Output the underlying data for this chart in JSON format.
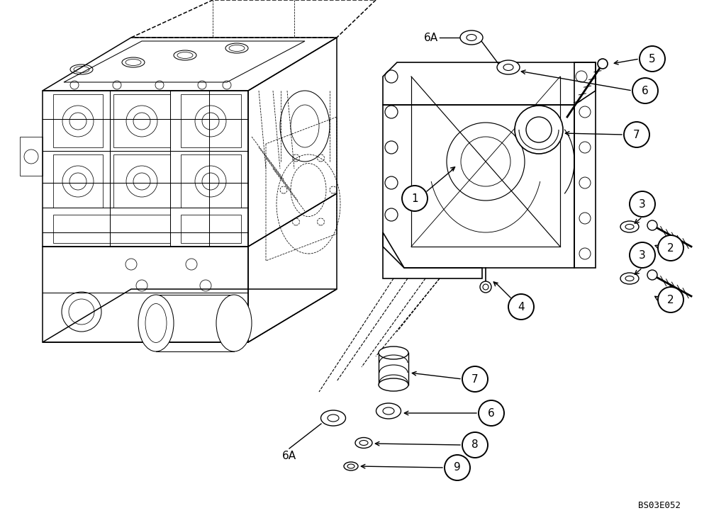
{
  "background_color": "#ffffff",
  "image_code": "BS03E052",
  "fig_width": 10.0,
  "fig_height": 7.48,
  "dpi": 100,
  "line_color": "#000000",
  "bubble_r": 0.028,
  "bubble_lw": 1.4,
  "bubble_fs": 11
}
